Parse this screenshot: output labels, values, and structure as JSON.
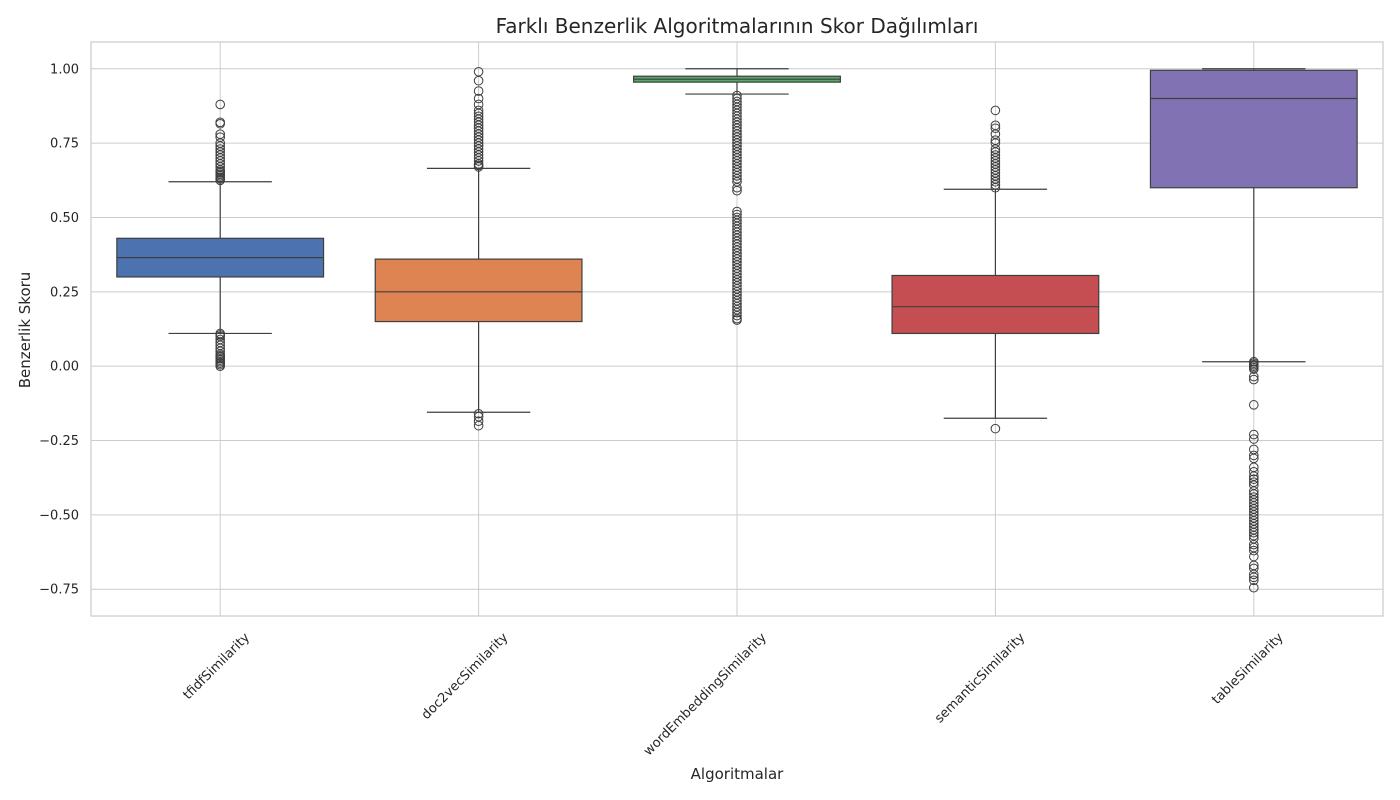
{
  "chart_data": {
    "type": "box",
    "title": "Farklı Benzerlik Algoritmalarının Skor Dağılımları",
    "xlabel": "Algoritmalar",
    "ylabel": "Benzerlik Skoru",
    "ylim": [
      -0.84,
      1.09
    ],
    "yticks": [
      {
        "value": 1.0,
        "label": "1.00"
      },
      {
        "value": 0.75,
        "label": "0.75"
      },
      {
        "value": 0.5,
        "label": "0.50"
      },
      {
        "value": 0.25,
        "label": "0.25"
      },
      {
        "value": 0.0,
        "label": "0.00"
      },
      {
        "value": -0.25,
        "label": "−0.25"
      },
      {
        "value": -0.5,
        "label": "−0.50"
      },
      {
        "value": -0.75,
        "label": "−0.75"
      }
    ],
    "grid": true,
    "series": [
      {
        "category": "tfidfSimilarity",
        "color": "#4c72b0",
        "whisker_low": 0.11,
        "q1": 0.3,
        "median": 0.365,
        "q3": 0.43,
        "whisker_high": 0.62,
        "outliers": [
          0.88,
          0.82,
          0.815,
          0.78,
          0.77,
          0.75,
          0.74,
          0.73,
          0.72,
          0.71,
          0.7,
          0.69,
          0.68,
          0.67,
          0.66,
          0.655,
          0.65,
          0.645,
          0.64,
          0.635,
          0.63,
          0.625,
          0.11,
          0.105,
          0.1,
          0.09,
          0.08,
          0.07,
          0.06,
          0.05,
          0.04,
          0.035,
          0.03,
          0.025,
          0.02,
          0.015,
          0.01,
          0.005,
          0.0
        ]
      },
      {
        "category": "doc2vecSimilarity",
        "color": "#dd8452",
        "whisker_low": -0.155,
        "q1": 0.15,
        "median": 0.25,
        "q3": 0.36,
        "whisker_high": 0.665,
        "outliers": [
          0.99,
          0.96,
          0.925,
          0.9,
          0.88,
          0.86,
          0.85,
          0.84,
          0.83,
          0.82,
          0.81,
          0.8,
          0.79,
          0.78,
          0.77,
          0.76,
          0.75,
          0.74,
          0.73,
          0.72,
          0.71,
          0.7,
          0.69,
          0.68,
          0.675,
          0.67,
          -0.16,
          -0.17,
          -0.185,
          -0.2
        ]
      },
      {
        "category": "wordEmbeddingSimilarity",
        "color": "#55a868",
        "whisker_low": 0.915,
        "q1": 0.955,
        "median": 0.965,
        "q3": 0.975,
        "whisker_high": 1.0,
        "outliers": [
          0.91,
          0.9,
          0.89,
          0.88,
          0.87,
          0.86,
          0.85,
          0.84,
          0.83,
          0.82,
          0.81,
          0.8,
          0.79,
          0.78,
          0.77,
          0.76,
          0.75,
          0.74,
          0.73,
          0.72,
          0.71,
          0.7,
          0.69,
          0.68,
          0.67,
          0.66,
          0.65,
          0.64,
          0.63,
          0.62,
          0.6,
          0.59,
          0.52,
          0.51,
          0.5,
          0.49,
          0.48,
          0.47,
          0.46,
          0.45,
          0.44,
          0.43,
          0.42,
          0.41,
          0.4,
          0.39,
          0.38,
          0.37,
          0.36,
          0.35,
          0.34,
          0.33,
          0.32,
          0.31,
          0.3,
          0.29,
          0.28,
          0.27,
          0.26,
          0.25,
          0.24,
          0.23,
          0.22,
          0.21,
          0.2,
          0.19,
          0.18,
          0.17,
          0.16,
          0.155
        ]
      },
      {
        "category": "semanticSimilarity",
        "color": "#c44e52",
        "whisker_low": -0.175,
        "q1": 0.11,
        "median": 0.2,
        "q3": 0.305,
        "whisker_high": 0.595,
        "outliers": [
          0.86,
          0.81,
          0.8,
          0.78,
          0.76,
          0.75,
          0.73,
          0.72,
          0.71,
          0.7,
          0.69,
          0.68,
          0.67,
          0.66,
          0.65,
          0.64,
          0.63,
          0.62,
          0.61,
          0.6,
          -0.21
        ]
      },
      {
        "category": "tableSimilarity",
        "color": "#8172b3",
        "whisker_low": 0.015,
        "q1": 0.6,
        "median": 0.9,
        "q3": 0.995,
        "whisker_high": 1.0,
        "outliers": [
          0.015,
          0.01,
          0.005,
          0.0,
          -0.005,
          -0.01,
          -0.035,
          -0.045,
          -0.13,
          -0.23,
          -0.245,
          -0.28,
          -0.3,
          -0.31,
          -0.34,
          -0.355,
          -0.37,
          -0.38,
          -0.39,
          -0.4,
          -0.42,
          -0.43,
          -0.44,
          -0.45,
          -0.46,
          -0.47,
          -0.48,
          -0.49,
          -0.5,
          -0.51,
          -0.52,
          -0.53,
          -0.54,
          -0.55,
          -0.56,
          -0.57,
          -0.58,
          -0.6,
          -0.61,
          -0.62,
          -0.64,
          -0.67,
          -0.68,
          -0.7,
          -0.71,
          -0.72,
          -0.745
        ]
      }
    ]
  }
}
